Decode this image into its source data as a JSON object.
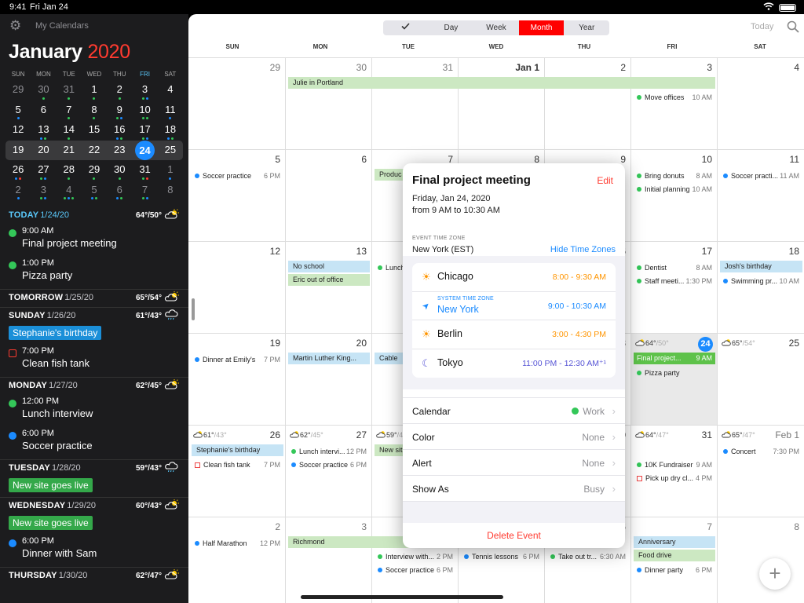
{
  "status": {
    "time": "9:41",
    "date": "Fri Jan 24"
  },
  "sidebar": {
    "my_calendars": "My Calendars",
    "month": "January",
    "year": "2020",
    "dow": [
      "SUN",
      "MON",
      "TUE",
      "WED",
      "THU",
      "FRI",
      "SAT"
    ],
    "weeks": [
      [
        {
          "d": "29",
          "o": true,
          "dots": []
        },
        {
          "d": "30",
          "o": true,
          "dots": [
            "#34c759"
          ]
        },
        {
          "d": "31",
          "o": true,
          "dots": [
            "#34c759"
          ]
        },
        {
          "d": "1",
          "dots": [
            "#34c759"
          ]
        },
        {
          "d": "2",
          "dots": [
            "#34c759"
          ]
        },
        {
          "d": "3",
          "dots": [
            "#34c759",
            "#1b8bff"
          ]
        },
        {
          "d": "4",
          "dots": []
        }
      ],
      [
        {
          "d": "5",
          "dots": [
            "#1b8bff"
          ]
        },
        {
          "d": "6",
          "dots": []
        },
        {
          "d": "7",
          "dots": [
            "#34c759"
          ]
        },
        {
          "d": "8",
          "dots": [
            "#34c759"
          ]
        },
        {
          "d": "9",
          "dots": [
            "#34c759",
            "#1b8bff"
          ]
        },
        {
          "d": "10",
          "dots": [
            "#34c759",
            "#34c759"
          ]
        },
        {
          "d": "11",
          "dots": [
            "#1b8bff"
          ]
        }
      ],
      [
        {
          "d": "12",
          "dots": []
        },
        {
          "d": "13",
          "dots": [
            "#1b8bff",
            "#34c759"
          ]
        },
        {
          "d": "14",
          "dots": [
            "#34c759"
          ]
        },
        {
          "d": "15",
          "dots": []
        },
        {
          "d": "16",
          "dots": [
            "#1b8bff",
            "#34c759"
          ]
        },
        {
          "d": "17",
          "dots": [
            "#34c759",
            "#1b8bff"
          ]
        },
        {
          "d": "18",
          "dots": [
            "#1b8bff",
            "#34c759"
          ]
        }
      ],
      [
        {
          "d": "19",
          "dots": []
        },
        {
          "d": "20",
          "dots": []
        },
        {
          "d": "21",
          "dots": []
        },
        {
          "d": "22",
          "dots": []
        },
        {
          "d": "23",
          "dots": []
        },
        {
          "d": "24",
          "sel": true,
          "dots": []
        },
        {
          "d": "25",
          "dots": []
        }
      ],
      [
        {
          "d": "26",
          "dots": [
            "#1b8bff",
            "#ff3b30"
          ]
        },
        {
          "d": "27",
          "dots": [
            "#34c759",
            "#1b8bff"
          ]
        },
        {
          "d": "28",
          "dots": [
            "#34c759"
          ]
        },
        {
          "d": "29",
          "dots": [
            "#34c759"
          ]
        },
        {
          "d": "30",
          "dots": [
            "#34c759"
          ]
        },
        {
          "d": "31",
          "dots": [
            "#34c759",
            "#ff3b30"
          ]
        },
        {
          "d": "1",
          "o": true,
          "dots": [
            "#1b8bff"
          ]
        }
      ],
      [
        {
          "d": "2",
          "o": true,
          "dots": [
            "#1b8bff"
          ]
        },
        {
          "d": "3",
          "o": true,
          "dots": [
            "#34c759",
            "#1b8bff"
          ]
        },
        {
          "d": "4",
          "o": true,
          "dots": [
            "#34c759",
            "#1b8bff",
            "#34c759"
          ]
        },
        {
          "d": "5",
          "o": true,
          "dots": [
            "#1b8bff",
            "#34c759"
          ]
        },
        {
          "d": "6",
          "o": true,
          "dots": [
            "#1b8bff",
            "#34c759"
          ]
        },
        {
          "d": "7",
          "o": true,
          "dots": [
            "#34c759",
            "#1b8bff"
          ]
        },
        {
          "d": "8",
          "o": true,
          "dots": []
        }
      ]
    ],
    "agenda": [
      {
        "label": "TODAY",
        "date": "1/24/20",
        "weather": "64°/50°",
        "today": true,
        "events": [
          {
            "kind": "dot",
            "color": "#34c759",
            "time": "9:00 AM",
            "title": "Final project meeting"
          },
          {
            "kind": "dot",
            "color": "#34c759",
            "time": "1:00 PM",
            "title": "Pizza party"
          }
        ]
      },
      {
        "label": "TOMORROW",
        "date": "1/25/20",
        "weather": "65°/54°",
        "events": []
      },
      {
        "label": "SUNDAY",
        "date": "1/26/20",
        "weather": "61°/43°",
        "events": [
          {
            "kind": "pill",
            "color": "#1b8fd8",
            "title": "Stephanie's birthday"
          },
          {
            "kind": "sq",
            "time": "7:00 PM",
            "title": "Clean fish tank"
          }
        ]
      },
      {
        "label": "MONDAY",
        "date": "1/27/20",
        "weather": "62°/45°",
        "events": [
          {
            "kind": "dot",
            "color": "#34c759",
            "time": "12:00 PM",
            "title": "Lunch interview"
          },
          {
            "kind": "dot",
            "color": "#1b8bff",
            "time": "6:00 PM",
            "title": "Soccer practice"
          }
        ]
      },
      {
        "label": "TUESDAY",
        "date": "1/28/20",
        "weather": "59°/43°",
        "events": [
          {
            "kind": "pill",
            "color": "#34a84a",
            "title": "New site goes live"
          }
        ]
      },
      {
        "label": "WEDNESDAY",
        "date": "1/29/20",
        "weather": "60°/43°",
        "events": [
          {
            "kind": "pill",
            "color": "#34a84a",
            "title": "New site goes live"
          },
          {
            "kind": "dot",
            "color": "#1b8bff",
            "time": "6:00 PM",
            "title": "Dinner with Sam"
          }
        ]
      },
      {
        "label": "THURSDAY",
        "date": "1/30/20",
        "weather": "62°/47°",
        "events": []
      }
    ]
  },
  "toolbar": {
    "views": [
      "",
      "Day",
      "Week",
      "Month",
      "Year"
    ],
    "active": "Month",
    "today": "Today"
  },
  "month_view": {
    "dow": [
      "SUN",
      "MON",
      "TUE",
      "WED",
      "THU",
      "FRI",
      "SAT"
    ],
    "weeks": [
      {
        "days": [
          "29",
          "30",
          "31",
          "Jan 1",
          "2",
          "3",
          "4"
        ],
        "dim": [
          1,
          1,
          1,
          0,
          0,
          0,
          0
        ],
        "bars": [
          {
            "text": "Julie in Portland",
            "c": "g",
            "from": 1,
            "to": 5,
            "row": 0
          }
        ],
        "events": [
          {
            "col": 5,
            "row": 1,
            "b": "#34c759",
            "text": "Move offices",
            "time": "10 AM"
          }
        ]
      },
      {
        "days": [
          "5",
          "6",
          "7",
          "8",
          "9",
          "10",
          "11"
        ],
        "dim": [
          0,
          0,
          0,
          0,
          0,
          0,
          0
        ],
        "bars": [
          {
            "text": "Produc",
            "c": "g",
            "from": 2,
            "to": 2,
            "row": 0
          }
        ],
        "events": [
          {
            "col": 0,
            "row": 0,
            "b": "#1b8bff",
            "text": "Soccer practice",
            "time": "6 PM"
          },
          {
            "col": 5,
            "row": 0,
            "b": "#34c759",
            "text": "Bring donuts",
            "time": "8 AM"
          },
          {
            "col": 5,
            "row": 1,
            "b": "#34c759",
            "text": "Initial planning",
            "time": "10 AM"
          },
          {
            "col": 6,
            "row": 0,
            "b": "#1b8bff",
            "text": "Soccer practi...",
            "time": "11 AM"
          }
        ]
      },
      {
        "days": [
          "12",
          "13",
          "14",
          "15",
          "16",
          "17",
          "18"
        ],
        "dim": [
          0,
          0,
          0,
          0,
          0,
          0,
          0
        ],
        "bars": [
          {
            "text": "No school",
            "c": "bl",
            "from": 1,
            "to": 1,
            "row": 0
          },
          {
            "text": "Eric out of office",
            "c": "g",
            "from": 1,
            "to": 1,
            "row": 1
          },
          {
            "text": "Josh's birthday",
            "c": "bl",
            "from": 6,
            "to": 6,
            "row": 0
          }
        ],
        "events": [
          {
            "col": 2,
            "row": 0,
            "b": "#34c759",
            "text": "Lunch",
            "time": ""
          },
          {
            "col": 5,
            "row": 0,
            "b": "#34c759",
            "text": "Dentist",
            "time": "8 AM"
          },
          {
            "col": 5,
            "row": 1,
            "b": "#34c759",
            "text": "Staff meeti...",
            "time": "1:30 PM"
          },
          {
            "col": 6,
            "row": 1,
            "b": "#1b8bff",
            "text": "Swimming pr...",
            "time": "10 AM"
          }
        ]
      },
      {
        "days": [
          "19",
          "20",
          "21",
          "22",
          "23",
          "24",
          "25"
        ],
        "dim": [
          0,
          0,
          0,
          0,
          0,
          0,
          0
        ],
        "bars": [
          {
            "text": "Martin Luther King...",
            "c": "bl",
            "from": 1,
            "to": 1,
            "row": 0
          },
          {
            "text": "Cable",
            "c": "bl",
            "from": 2,
            "to": 2,
            "row": 0
          }
        ],
        "events": [
          {
            "col": 0,
            "row": 0,
            "b": "#1b8bff",
            "text": "Dinner at Emily's",
            "time": "7 PM"
          },
          {
            "col": 5,
            "row": 1,
            "b": "#34c759",
            "text": "Pizza party",
            "time": ""
          }
        ],
        "highlight": {
          "col": 5,
          "text": "Final project...",
          "time": "9 AM"
        },
        "weather": [
          {
            "col": 5,
            "hi": "64°",
            "lo": "/50°"
          },
          {
            "col": 6,
            "hi": "65°",
            "lo": "/54°"
          }
        ]
      },
      {
        "days": [
          "26",
          "27",
          "28",
          "29",
          "30",
          "31",
          "Feb 1"
        ],
        "dim": [
          0,
          0,
          0,
          0,
          0,
          0,
          1
        ],
        "bars": [
          {
            "text": "Stephanie's birthday",
            "c": "bl",
            "from": 0,
            "to": 0,
            "row": 0
          },
          {
            "text": "New sit",
            "c": "g",
            "from": 2,
            "to": 2,
            "row": 0
          }
        ],
        "events": [
          {
            "col": 0,
            "row": 1,
            "sq": true,
            "text": "Clean fish tank",
            "time": "7 PM"
          },
          {
            "col": 1,
            "row": 0,
            "b": "#34c759",
            "text": "Lunch intervi...",
            "time": "12 PM"
          },
          {
            "col": 1,
            "row": 1,
            "b": "#1b8bff",
            "text": "Soccer practice",
            "time": "6 PM"
          },
          {
            "col": 5,
            "row": 1,
            "b": "#34c759",
            "text": "10K Fundraiser",
            "time": "9 AM"
          },
          {
            "col": 5,
            "row": 2,
            "sq": true,
            "text": "Pick up dry cl...",
            "time": "4 PM"
          },
          {
            "col": 6,
            "row": 0,
            "b": "#1b8bff",
            "text": "Concert",
            "time": "7:30 PM"
          }
        ],
        "weather": [
          {
            "col": 0,
            "hi": "61°",
            "lo": "/43°"
          },
          {
            "col": 1,
            "hi": "62°",
            "lo": "/45°"
          },
          {
            "col": 2,
            "hi": "59°",
            "lo": "/43°"
          },
          {
            "col": 5,
            "hi": "64°",
            "lo": "/47°"
          },
          {
            "col": 6,
            "hi": "65°",
            "lo": "/47°"
          }
        ]
      },
      {
        "days": [
          "2",
          "3",
          "4",
          "5",
          "6",
          "7",
          "8"
        ],
        "dim": [
          1,
          1,
          1,
          1,
          1,
          1,
          1
        ],
        "bars": [
          {
            "text": "Richmond",
            "c": "g",
            "from": 1,
            "to": 2,
            "row": 0
          },
          {
            "text": "Anniversary",
            "c": "bl",
            "from": 5,
            "to": 5,
            "row": 0
          },
          {
            "text": "Food drive",
            "c": "g",
            "from": 5,
            "to": 5,
            "row": 1
          }
        ],
        "events": [
          {
            "col": 0,
            "row": 0,
            "b": "#1b8bff",
            "text": "Half Marathon",
            "time": "12 PM"
          },
          {
            "col": 2,
            "row": 1,
            "b": "#34c759",
            "text": "Interview with...",
            "time": "2 PM"
          },
          {
            "col": 2,
            "row": 2,
            "b": "#1b8bff",
            "text": "Soccer practice",
            "time": "6 PM"
          },
          {
            "col": 3,
            "row": 1,
            "b": "#1b8bff",
            "text": "Tennis lessons",
            "time": "6 PM"
          },
          {
            "col": 4,
            "row": 1,
            "b": "#34c759",
            "text": "Take out tr...",
            "time": "6:30 AM"
          },
          {
            "col": 5,
            "row": 2,
            "b": "#1b8bff",
            "text": "Dinner party",
            "time": "6 PM"
          }
        ]
      }
    ]
  },
  "popover": {
    "title": "Final project meeting",
    "edit": "Edit",
    "date": "Friday, Jan 24, 2020",
    "time": "from 9 AM to 10:30 AM",
    "tz_label": "EVENT TIME ZONE",
    "tz_value": "New York (EST)",
    "hide_tz": "Hide Time Zones",
    "zones": [
      {
        "name": "Chicago",
        "range": "8:00 - 9:30 AM",
        "icon": "sun-icon",
        "color": "#ff9500"
      },
      {
        "name": "New York",
        "sys": "SYSTEM TIME ZONE",
        "range": "9:00 - 10:30 AM",
        "icon": "location-arrow-icon",
        "color": "#1b8bff"
      },
      {
        "name": "Berlin",
        "range": "3:00 - 4:30 PM",
        "icon": "sun-icon",
        "color": "#ff9500"
      },
      {
        "name": "Tokyo",
        "range": "11:00 PM - 12:30 AM⁺¹",
        "icon": "moon-icon",
        "color": "#5856d6"
      }
    ],
    "rows": [
      {
        "key": "Calendar",
        "value": "Work",
        "dot": "#34c759"
      },
      {
        "key": "Color",
        "value": "None"
      },
      {
        "key": "Alert",
        "value": "None"
      },
      {
        "key": "Show As",
        "value": "Busy"
      }
    ],
    "delete": "Delete Event"
  }
}
